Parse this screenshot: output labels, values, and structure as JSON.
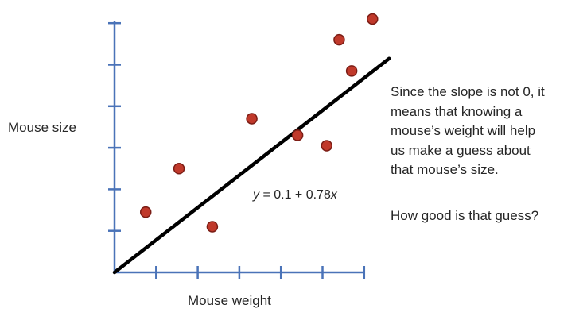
{
  "chart_data": {
    "type": "scatter",
    "xlabel": "Mouse weight",
    "ylabel": "Mouse size",
    "xlim": [
      0,
      6
    ],
    "ylim": [
      0,
      6
    ],
    "x_ticks": [
      1,
      2,
      3,
      4,
      5,
      6
    ],
    "y_ticks": [
      1,
      2,
      3,
      4,
      5,
      6
    ],
    "tick_labels_shown": false,
    "grid": false,
    "legend": false,
    "points": [
      {
        "x": 0.75,
        "y": 1.45
      },
      {
        "x": 1.55,
        "y": 2.5
      },
      {
        "x": 2.35,
        "y": 1.1
      },
      {
        "x": 3.3,
        "y": 3.7
      },
      {
        "x": 4.4,
        "y": 3.3
      },
      {
        "x": 5.1,
        "y": 3.05
      },
      {
        "x": 5.4,
        "y": 5.6
      },
      {
        "x": 5.7,
        "y": 4.85
      },
      {
        "x": 6.2,
        "y": 6.1
      }
    ],
    "regression": {
      "intercept": 0.1,
      "slope": 0.78,
      "x_range": [
        0,
        6.6
      ],
      "equation_parts": [
        "y",
        " = 0.1 + 0.78",
        "x"
      ]
    },
    "colors": {
      "axis": "#4a73b8",
      "line": "#000000",
      "point_fill": "#c0392b",
      "point_stroke": "#7b1d15"
    }
  },
  "annotation": {
    "lines": [
      "Since the slope is not 0, it",
      "means that knowing a",
      "mouse’s weight will help",
      "us make a guess about",
      "that mouse’s size."
    ],
    "question": "How good is that guess?"
  }
}
